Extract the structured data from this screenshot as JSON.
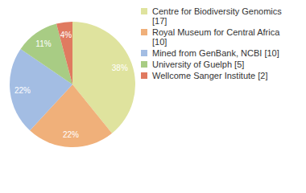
{
  "chart_data": {
    "type": "pie",
    "categories": [
      "Centre for Biodiversity Genomics [17]",
      "Royal Museum for Central Africa [10]",
      "Mined from GenBank, NCBI [10]",
      "University of Guelph [5]",
      "Wellcome Sanger Institute [2]"
    ],
    "values": [
      38,
      22,
      22,
      11,
      4
    ],
    "value_labels": [
      "38%",
      "22%",
      "22%",
      "11%",
      "4%"
    ],
    "colors": [
      "#dfe39e",
      "#f0b07a",
      "#a3bde3",
      "#a8cc84",
      "#e07a60"
    ],
    "data_labels": true,
    "legend": "right"
  }
}
